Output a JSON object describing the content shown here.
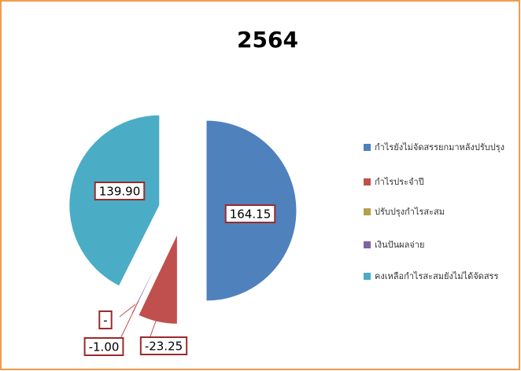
{
  "chart_data": {
    "type": "pie",
    "title": "2564",
    "categories": [
      "กำไรยังไม่จัดสรรยกมาหลังปรับปรุง",
      "กำไรประจำปี",
      "ปรับปรุงกำไรสะสม",
      "เงินปันผลจ่าย",
      "คงเหลือกำไรสะสมยังไม่ได้จัดสรร"
    ],
    "values": [
      164.15,
      -23.25,
      0,
      -1.0,
      139.9
    ],
    "value_labels": [
      "164.15",
      "-23.25",
      "-",
      "-1.00",
      "139.90"
    ],
    "colors": [
      "#4f81bd",
      "#c0504d",
      "#b5a04c",
      "#8064a2",
      "#4bacc6"
    ],
    "legend": "right"
  }
}
